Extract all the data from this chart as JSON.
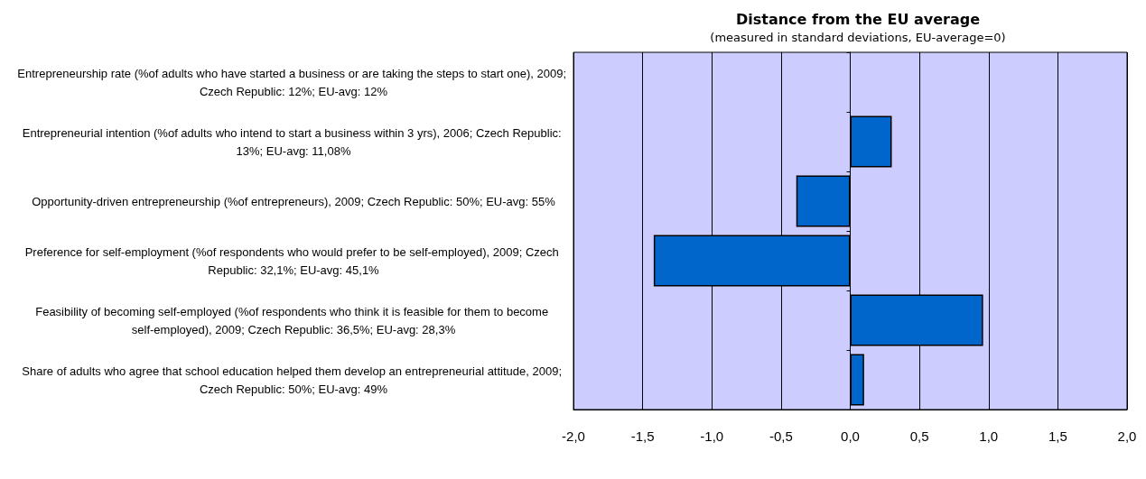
{
  "chart_data": {
    "type": "bar",
    "orientation": "horizontal",
    "title": "Distance from the EU average",
    "subtitle": "(measured in standard deviations, EU-average=0)",
    "categories": [
      "Entrepreneurship rate (%of adults who have started a business or are taking the steps to start one), 2009; Czech Republic: 12%; EU-avg: 12%",
      "Entrepreneurial intention (%of adults who intend to start a business within 3 yrs), 2006; Czech Republic: 13%; EU-avg: 11,08%",
      "Opportunity-driven entrepreneurship (%of entrepreneurs), 2009; Czech Republic: 50%; EU-avg: 55%",
      "Preference for self-employment (%of respondents who would prefer to be self-employed), 2009; Czech Republic: 32,1%; EU-avg: 45,1%",
      "Feasibility of becoming self-employed (%of respondents who think it is feasible for them to become self-employed), 2009; Czech Republic: 36,5%; EU-avg: 28,3%",
      "Share of adults who agree that school education helped them develop an entrepreneurial attitude, 2009; Czech Republic: 50%; EU-avg: 49%"
    ],
    "values": [
      0,
      0.3,
      -0.39,
      -1.42,
      0.96,
      0.1
    ],
    "color": "#0066cc",
    "xlim": [
      -2,
      2
    ],
    "xticks": [
      {
        "value": -2,
        "label": "-2,0"
      },
      {
        "value": -1.5,
        "label": "-1,5"
      },
      {
        "value": -1,
        "label": "-1,0"
      },
      {
        "value": -0.5,
        "label": "-0,5"
      },
      {
        "value": 0,
        "label": "0,0"
      },
      {
        "value": 0.5,
        "label": "0,5"
      },
      {
        "value": 1,
        "label": "1,0"
      },
      {
        "value": 1.5,
        "label": "1,5"
      },
      {
        "value": 2,
        "label": "2,0"
      }
    ],
    "grid": "x"
  }
}
